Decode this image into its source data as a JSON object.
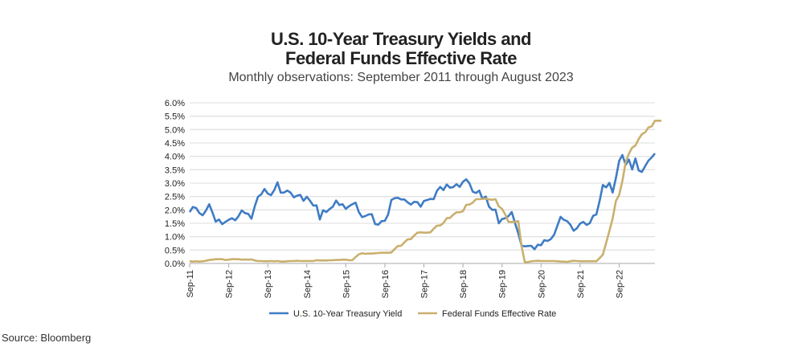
{
  "chart_data": {
    "type": "line",
    "title": "U.S. 10-Year Treasury Yields and Federal Funds Effective Rate",
    "title_lines": [
      "U.S. 10-Year Treasury Yields and",
      "Federal Funds Effective Rate"
    ],
    "subtitle": "Monthly observations: September 2011 through August 2023",
    "source": "Source: Bloomberg",
    "xlabel": "",
    "ylabel": "",
    "x_start": "Sep-11",
    "x_end": "Aug-23",
    "x_tick_labels": [
      "Sep-11",
      "Sep-12",
      "Sep-13",
      "Sep-14",
      "Sep-15",
      "Sep-16",
      "Sep-17",
      "Sep-18",
      "Sep-19",
      "Sep-20",
      "Sep-21",
      "Sep-22"
    ],
    "y_tick_labels": [
      "0.0%",
      "0.5%",
      "1.0%",
      "1.5%",
      "2.0%",
      "2.5%",
      "3.0%",
      "3.5%",
      "4.0%",
      "4.5%",
      "5.0%",
      "5.5%",
      "6.0%"
    ],
    "ylim": [
      0,
      6
    ],
    "grid": true,
    "legend_position": "bottom",
    "series": [
      {
        "name": "U.S. 10-Year Treasury Yield",
        "color": "#3f7cc4",
        "values": [
          1.92,
          2.11,
          2.07,
          1.88,
          1.8,
          1.97,
          2.21,
          1.91,
          1.56,
          1.64,
          1.47,
          1.55,
          1.63,
          1.69,
          1.61,
          1.76,
          1.98,
          1.88,
          1.85,
          1.67,
          2.13,
          2.49,
          2.58,
          2.78,
          2.61,
          2.55,
          2.74,
          3.03,
          2.64,
          2.65,
          2.72,
          2.65,
          2.47,
          2.53,
          2.56,
          2.34,
          2.49,
          2.34,
          2.16,
          2.17,
          1.64,
          1.99,
          1.92,
          2.03,
          2.12,
          2.35,
          2.18,
          2.21,
          2.04,
          2.14,
          2.21,
          2.27,
          1.92,
          1.73,
          1.77,
          1.83,
          1.84,
          1.47,
          1.45,
          1.58,
          1.59,
          1.83,
          2.37,
          2.44,
          2.45,
          2.39,
          2.39,
          2.28,
          2.2,
          2.3,
          2.29,
          2.12,
          2.33,
          2.37,
          2.41,
          2.4,
          2.71,
          2.86,
          2.74,
          2.95,
          2.83,
          2.85,
          2.96,
          2.86,
          3.05,
          3.14,
          2.99,
          2.68,
          2.63,
          2.72,
          2.41,
          2.5,
          2.12,
          2.0,
          2.01,
          1.5,
          1.66,
          1.69,
          1.77,
          1.92,
          1.51,
          1.13,
          0.67,
          0.64,
          0.65,
          0.66,
          0.53,
          0.7,
          0.68,
          0.87,
          0.84,
          0.91,
          1.07,
          1.4,
          1.74,
          1.63,
          1.58,
          1.45,
          1.22,
          1.31,
          1.49,
          1.55,
          1.44,
          1.51,
          1.78,
          1.83,
          2.34,
          2.93,
          2.84,
          3.01,
          2.65,
          3.19,
          3.83,
          4.05,
          3.68,
          3.88,
          3.51,
          3.92,
          3.47,
          3.42,
          3.64,
          3.84,
          3.96,
          4.11
        ]
      },
      {
        "name": "Federal Funds Effective Rate",
        "color": "#c9b06e",
        "values": [
          0.08,
          0.07,
          0.08,
          0.07,
          0.08,
          0.1,
          0.13,
          0.14,
          0.16,
          0.16,
          0.16,
          0.13,
          0.14,
          0.16,
          0.16,
          0.16,
          0.14,
          0.15,
          0.14,
          0.15,
          0.11,
          0.09,
          0.09,
          0.08,
          0.08,
          0.09,
          0.08,
          0.09,
          0.07,
          0.07,
          0.08,
          0.09,
          0.09,
          0.1,
          0.09,
          0.09,
          0.09,
          0.09,
          0.09,
          0.12,
          0.11,
          0.11,
          0.11,
          0.12,
          0.12,
          0.13,
          0.13,
          0.14,
          0.14,
          0.12,
          0.12,
          0.24,
          0.34,
          0.38,
          0.36,
          0.37,
          0.37,
          0.38,
          0.39,
          0.4,
          0.4,
          0.4,
          0.41,
          0.54,
          0.65,
          0.66,
          0.79,
          0.9,
          0.91,
          1.04,
          1.15,
          1.16,
          1.15,
          1.15,
          1.16,
          1.3,
          1.41,
          1.42,
          1.51,
          1.69,
          1.7,
          1.82,
          1.91,
          1.91,
          1.95,
          2.19,
          2.2,
          2.27,
          2.4,
          2.4,
          2.41,
          2.42,
          2.39,
          2.38,
          2.4,
          2.13,
          2.04,
          1.83,
          1.55,
          1.55,
          1.55,
          1.58,
          0.65,
          0.05,
          0.05,
          0.08,
          0.09,
          0.1,
          0.09,
          0.09,
          0.09,
          0.09,
          0.09,
          0.08,
          0.07,
          0.07,
          0.06,
          0.08,
          0.1,
          0.09,
          0.08,
          0.08,
          0.08,
          0.08,
          0.08,
          0.08,
          0.2,
          0.33,
          0.77,
          1.21,
          1.68,
          2.33,
          2.56,
          3.08,
          3.78,
          4.1,
          4.33,
          4.4,
          4.65,
          4.83,
          4.9,
          5.08,
          5.12,
          5.33,
          5.33,
          5.33
        ]
      }
    ]
  }
}
